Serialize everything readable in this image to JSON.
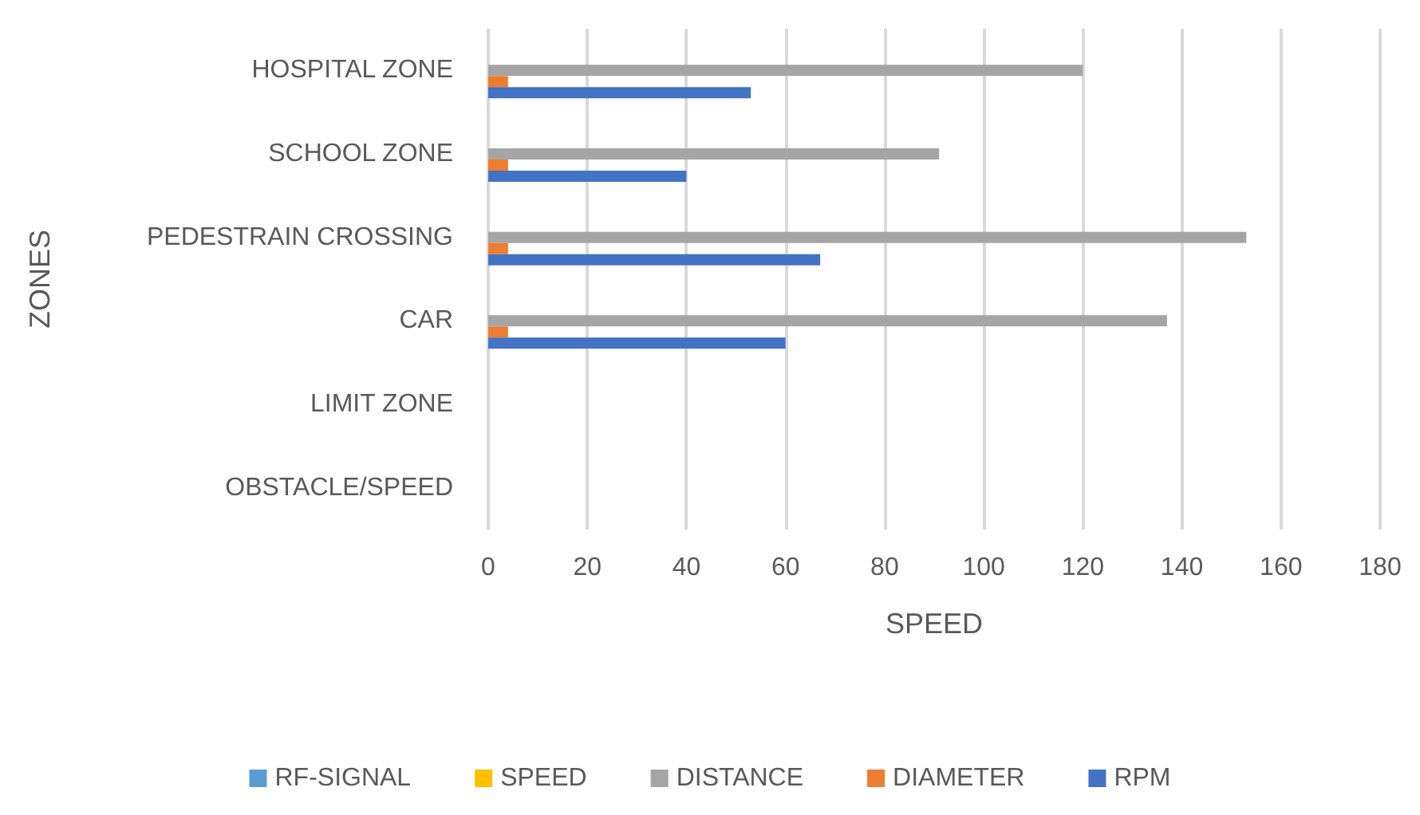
{
  "chart_data": {
    "type": "bar",
    "orientation": "horizontal",
    "xlabel": "SPEED",
    "ylabel": "ZONES",
    "categories": [
      "HOSPITAL ZONE",
      "SCHOOL ZONE",
      "PEDESTRAIN CROSSING",
      "CAR",
      "LIMIT ZONE",
      "OBSTACLE/SPEED"
    ],
    "series": [
      {
        "name": "RF-SIGNAL",
        "color": "#5b9bd5",
        "values": [
          null,
          null,
          null,
          null,
          null,
          null
        ]
      },
      {
        "name": "SPEED",
        "color": "#ffc000",
        "values": [
          null,
          null,
          null,
          null,
          null,
          null
        ]
      },
      {
        "name": "DISTANCE",
        "color": "#a5a5a5",
        "values": [
          120,
          91,
          153,
          137,
          null,
          null
        ]
      },
      {
        "name": "DIAMETER",
        "color": "#ed7d31",
        "values": [
          4,
          4,
          4,
          4,
          null,
          null
        ]
      },
      {
        "name": "RPM",
        "color": "#4472c4",
        "values": [
          53,
          40,
          67,
          60,
          null,
          null
        ]
      }
    ],
    "xlim": [
      0,
      180
    ],
    "xticks": [
      0,
      20,
      40,
      60,
      80,
      100,
      120,
      140,
      160,
      180
    ],
    "grid": "x",
    "legend": "bottom"
  }
}
